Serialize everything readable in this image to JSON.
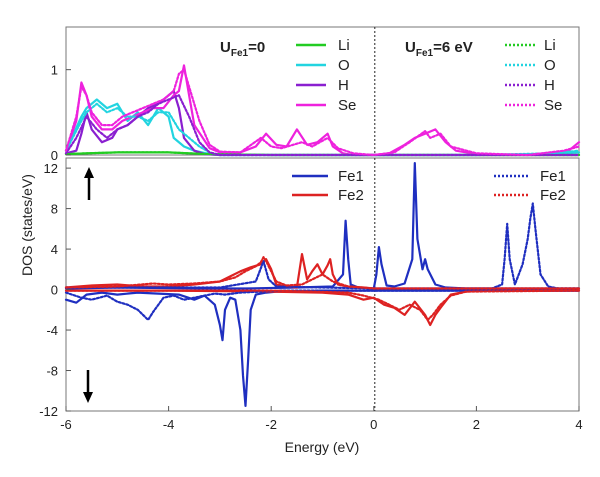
{
  "chart_data": [
    {
      "type": "line",
      "panel": "top",
      "xlim": [
        -6,
        4
      ],
      "ylim": [
        0,
        1.5
      ],
      "y_ticks": [
        "0",
        "1"
      ],
      "y_tick_values": [
        0,
        1
      ],
      "grid": false,
      "fermi_level_line": 0,
      "legend_left": {
        "title_main": "U",
        "title_sub": "Fe1",
        "title_value": "=0",
        "entries": [
          "Li",
          "O",
          "H",
          "Se"
        ],
        "style": "solid"
      },
      "legend_right": {
        "title_main": "U",
        "title_sub": "Fe1",
        "title_value": "=6 eV",
        "entries": [
          "Li",
          "O",
          "H",
          "Se"
        ],
        "style": "dotted"
      },
      "series": [
        {
          "name": "Li",
          "case": "U=0",
          "color": "#22cc22",
          "style": "solid",
          "x": [
            -6,
            -5.6,
            -5,
            -4.5,
            -4,
            -3.6,
            -3.2,
            -2,
            0,
            2,
            4
          ],
          "y": [
            0.01,
            0.02,
            0.03,
            0.03,
            0.03,
            0.02,
            0.01,
            0.0,
            0.0,
            0.0,
            0.0
          ]
        },
        {
          "name": "O",
          "case": "U=0",
          "color": "#22d4e0",
          "style": "solid",
          "x": [
            -6,
            -5.7,
            -5.6,
            -5.4,
            -5.2,
            -5,
            -4.8,
            -4.6,
            -4.4,
            -4.2,
            -4,
            -3.9,
            -3.7,
            -3.5,
            -3.2,
            -3,
            0,
            2,
            3.5,
            4
          ],
          "y": [
            0.05,
            0.45,
            0.55,
            0.65,
            0.55,
            0.6,
            0.4,
            0.5,
            0.35,
            0.55,
            0.45,
            0.2,
            0.1,
            0.05,
            0.01,
            0,
            0,
            0,
            0.01,
            0.03
          ]
        },
        {
          "name": "H",
          "case": "U=0",
          "color": "#8a1fd0",
          "style": "solid",
          "x": [
            -6,
            -5.8,
            -5.7,
            -5.6,
            -5.5,
            -5.3,
            -5.1,
            -5,
            -4.8,
            -4.6,
            -4.4,
            -4.2,
            -4,
            -3.9,
            -3.8,
            -3.7,
            -3.5,
            -3.3,
            -3,
            0,
            4
          ],
          "y": [
            0.02,
            0.05,
            0.25,
            0.5,
            0.3,
            0.15,
            0.2,
            0.3,
            0.35,
            0.45,
            0.55,
            0.6,
            0.7,
            0.75,
            0.55,
            0.2,
            0.05,
            0.01,
            0,
            0,
            0
          ]
        },
        {
          "name": "Se",
          "case": "U=0",
          "color": "#ee22dd",
          "style": "solid",
          "x": [
            -6,
            -5.8,
            -5.7,
            -5.6,
            -5.5,
            -5.3,
            -5.1,
            -4.9,
            -4.7,
            -4.5,
            -4.3,
            -4.1,
            -3.9,
            -3.8,
            -3.7,
            -3.6,
            -3.5,
            -3.2,
            -3,
            -2.6,
            -2.3,
            -2.1,
            -1.9,
            -1.7,
            -1.5,
            -1.3,
            -1.1,
            -0.9,
            -0.8,
            -0.6,
            -0.4,
            -0.2,
            0,
            0.3,
            0.6,
            0.8,
            1,
            1.2,
            1.4,
            1.6,
            2,
            3,
            3.8,
            4
          ],
          "y": [
            0.05,
            0.4,
            0.85,
            0.7,
            0.45,
            0.3,
            0.3,
            0.4,
            0.45,
            0.5,
            0.55,
            0.55,
            0.7,
            0.75,
            1.05,
            0.7,
            0.35,
            0.08,
            0.03,
            0.03,
            0.1,
            0.25,
            0.12,
            0.1,
            0.3,
            0.12,
            0.15,
            0.25,
            0.1,
            0.02,
            0.0,
            0.0,
            0.0,
            0.02,
            0.12,
            0.2,
            0.25,
            0.3,
            0.15,
            0.05,
            0.01,
            0.0,
            0.05,
            0.15
          ]
        },
        {
          "name": "Li",
          "case": "U=6 eV",
          "color": "#22cc22",
          "style": "dotted",
          "x": [
            -6,
            -5.6,
            -5,
            -4.5,
            -4,
            -3.6,
            -3.2,
            -2,
            0,
            2,
            4
          ],
          "y": [
            0.01,
            0.02,
            0.03,
            0.03,
            0.03,
            0.02,
            0.01,
            0.0,
            0.0,
            0.0,
            0.0
          ]
        },
        {
          "name": "O",
          "case": "U=6 eV",
          "color": "#22d4e0",
          "style": "dotted",
          "x": [
            -6,
            -5.7,
            -5.6,
            -5.4,
            -5.2,
            -5,
            -4.8,
            -4.6,
            -4.4,
            -4.2,
            -4,
            -3.8,
            -3.6,
            -3.4,
            -3.2,
            -3,
            0,
            2,
            3.5,
            4
          ],
          "y": [
            0.05,
            0.4,
            0.5,
            0.6,
            0.5,
            0.55,
            0.45,
            0.45,
            0.4,
            0.5,
            0.5,
            0.3,
            0.2,
            0.1,
            0.03,
            0,
            0,
            0,
            0.02,
            0.05
          ]
        },
        {
          "name": "H",
          "case": "U=6 eV",
          "color": "#8a1fd0",
          "style": "dotted",
          "x": [
            -6,
            -5.8,
            -5.6,
            -5.4,
            -5.2,
            -5,
            -4.8,
            -4.6,
            -4.4,
            -4.2,
            -4,
            -3.8,
            -3.6,
            -3.4,
            -3.2,
            -3,
            0,
            4
          ],
          "y": [
            0.02,
            0.2,
            0.45,
            0.3,
            0.2,
            0.3,
            0.35,
            0.45,
            0.5,
            0.6,
            0.65,
            0.7,
            0.45,
            0.15,
            0.03,
            0,
            0,
            0
          ]
        },
        {
          "name": "Se",
          "case": "U=6 eV",
          "color": "#ee22dd",
          "style": "dotted",
          "x": [
            -6,
            -5.8,
            -5.7,
            -5.6,
            -5.5,
            -5.3,
            -5.1,
            -4.9,
            -4.7,
            -4.5,
            -4.3,
            -4.1,
            -3.9,
            -3.8,
            -3.7,
            -3.6,
            -3.4,
            -3.2,
            -3,
            -2.6,
            -2.2,
            -2,
            -1.8,
            -1.4,
            -1.2,
            -0.9,
            -0.7,
            -0.4,
            0,
            0.4,
            0.7,
            1,
            1.1,
            1.3,
            1.5,
            2,
            3,
            3.7,
            4
          ],
          "y": [
            0.05,
            0.45,
            0.8,
            0.7,
            0.5,
            0.35,
            0.35,
            0.45,
            0.5,
            0.55,
            0.6,
            0.65,
            0.75,
            0.95,
            1.0,
            0.8,
            0.4,
            0.12,
            0.04,
            0.03,
            0.2,
            0.1,
            0.08,
            0.15,
            0.1,
            0.2,
            0.08,
            0.02,
            0,
            0.03,
            0.15,
            0.28,
            0.2,
            0.25,
            0.1,
            0.02,
            0,
            0.05,
            0.1
          ]
        }
      ]
    },
    {
      "type": "line",
      "panel": "bottom",
      "xlim": [
        -6,
        4
      ],
      "ylim": [
        -12,
        13
      ],
      "x_ticks": [
        "-6",
        "-4",
        "-2",
        "0",
        "2",
        "4"
      ],
      "x_tick_values": [
        -6,
        -4,
        -2,
        0,
        2,
        4
      ],
      "y_ticks": [
        "12",
        "8",
        "4",
        "0",
        "-4",
        "-8",
        "-12"
      ],
      "y_tick_values": [
        12,
        8,
        4,
        0,
        -4,
        -8,
        -12
      ],
      "xlabel": "Energy (eV)",
      "ylabel": "DOS (states/eV)",
      "grid": false,
      "fermi_level_line": 0,
      "arrows": [
        "spin-up",
        "spin-down"
      ],
      "legend_left": {
        "entries": [
          "Fe1",
          "Fe2"
        ],
        "style": "solid"
      },
      "legend_right": {
        "entries": [
          "Fe1",
          "Fe2"
        ],
        "style": "dotted"
      },
      "series": [
        {
          "name": "Fe1",
          "case": "U=0",
          "spin": "up",
          "color": "#1f2fc0",
          "style": "solid",
          "x": [
            -6,
            -5,
            -3.2,
            -2.5,
            -1.5,
            -0.8,
            -0.6,
            -0.55,
            -0.5,
            -0.45,
            -0.3,
            0,
            0.05,
            0.1,
            0.15,
            0.25,
            0.4,
            0.6,
            0.75,
            0.8,
            0.85,
            0.95,
            1.0,
            1.05,
            1.2,
            1.4,
            1.8,
            4
          ],
          "y": [
            0.1,
            0.2,
            0.1,
            0.1,
            0.2,
            0.3,
            1.5,
            6.8,
            3.0,
            0.5,
            0.2,
            0.1,
            1.5,
            4.2,
            2.5,
            0.4,
            0.3,
            0.6,
            3.0,
            12.5,
            5.0,
            2.0,
            3.0,
            2.0,
            0.5,
            0.2,
            0.1,
            0.1
          ]
        },
        {
          "name": "Fe1",
          "case": "U=0",
          "spin": "down",
          "color": "#1f2fc0",
          "style": "solid",
          "x": [
            -6,
            -5.8,
            -5.6,
            -5.3,
            -5,
            -4.6,
            -4.2,
            -3.8,
            -3.5,
            -3.3,
            -3.1,
            -3.0,
            -2.95,
            -2.9,
            -2.8,
            -2.7,
            -2.6,
            -2.55,
            -2.5,
            -2.45,
            -2.4,
            -2.3,
            -2.1,
            -1.9,
            -1.5,
            -1,
            0,
            4
          ],
          "y": [
            -1.0,
            -1.3,
            -0.5,
            -0.3,
            -0.5,
            -0.3,
            -0.4,
            -0.5,
            -1.0,
            -0.6,
            -1.5,
            -3.5,
            -5.0,
            -2.0,
            -0.8,
            -1.0,
            -4.0,
            -8.5,
            -11.5,
            -7.0,
            -2.0,
            -0.5,
            -0.3,
            -0.2,
            -0.2,
            -0.1,
            -0.1,
            -0.1
          ]
        },
        {
          "name": "Fe2",
          "case": "U=0",
          "spin": "up",
          "color": "#dd2222",
          "style": "solid",
          "x": [
            -6,
            -5.5,
            -5,
            -4.5,
            -4,
            -3.5,
            -3,
            -2.8,
            -2.6,
            -2.4,
            -2.2,
            -2.1,
            -2.0,
            -1.9,
            -1.7,
            -1.5,
            -1.4,
            -1.3,
            -1.2,
            -1.1,
            -1,
            -0.9,
            -0.85,
            -0.8,
            -0.7,
            -0.5,
            -0.2,
            0,
            0.3,
            0.8,
            1.5,
            2,
            4
          ],
          "y": [
            0.2,
            0.4,
            0.5,
            0.3,
            0.3,
            0.5,
            0.8,
            1.3,
            1.8,
            2.2,
            2.5,
            3.0,
            2.0,
            0.5,
            0.3,
            0.2,
            3.5,
            1.0,
            1.8,
            2.5,
            1.5,
            2.4,
            3.0,
            1.5,
            0.5,
            0.3,
            0.2,
            0.1,
            0.1,
            0.1,
            0.1,
            0.1,
            0.1
          ]
        },
        {
          "name": "Fe2",
          "case": "U=0",
          "spin": "down",
          "color": "#dd2222",
          "style": "solid",
          "x": [
            -6,
            -4,
            -2,
            -1,
            -0.5,
            -0.2,
            0,
            0.2,
            0.4,
            0.6,
            0.8,
            1.0,
            1.1,
            1.2,
            1.3,
            1.5,
            1.8,
            2.2,
            4
          ],
          "y": [
            -0.1,
            -0.1,
            -0.2,
            -0.3,
            -0.5,
            -1.0,
            -0.8,
            -1.5,
            -1.8,
            -2.5,
            -1.2,
            -2.5,
            -3.5,
            -2.5,
            -1.8,
            -0.5,
            -0.2,
            -0.1,
            -0.1
          ]
        },
        {
          "name": "Fe1",
          "case": "U=6 eV",
          "spin": "up",
          "color": "#1f2fc0",
          "style": "dotted",
          "x": [
            -6,
            -3,
            -2.3,
            -2.15,
            -2.05,
            -1.9,
            -1,
            0,
            2.3,
            2.5,
            2.55,
            2.6,
            2.65,
            2.75,
            2.9,
            3.0,
            3.05,
            3.1,
            3.15,
            3.25,
            3.4,
            3.6,
            4
          ],
          "y": [
            0.2,
            0.2,
            0.8,
            2.8,
            1.0,
            0.3,
            0.2,
            0.1,
            0.1,
            0.5,
            3.0,
            6.5,
            3.0,
            0.5,
            2.5,
            5.0,
            7.0,
            8.5,
            6.0,
            1.5,
            0.3,
            0.1,
            0.1
          ]
        },
        {
          "name": "Fe1",
          "case": "U=6 eV",
          "spin": "down",
          "color": "#1f2fc0",
          "style": "dotted",
          "x": [
            -6,
            -5.7,
            -5.5,
            -5.2,
            -5.0,
            -4.8,
            -4.6,
            -4.4,
            -4.3,
            -4.1,
            -3.9,
            -3.7,
            -3.5,
            -3.3,
            -3.1,
            -2.9,
            -2.6,
            -2.2,
            -1.8,
            0,
            4
          ],
          "y": [
            -0.3,
            -0.8,
            -1.0,
            -0.6,
            -1.2,
            -1.5,
            -2.0,
            -3.0,
            -2.2,
            -0.8,
            -0.6,
            -1.0,
            -0.8,
            -0.6,
            -0.4,
            -0.5,
            -0.3,
            -0.2,
            -0.1,
            -0.1,
            -0.1
          ]
        },
        {
          "name": "Fe2",
          "case": "U=6 eV",
          "spin": "up",
          "color": "#dd2222",
          "style": "dotted",
          "x": [
            -6,
            -5,
            -4.3,
            -4,
            -3.5,
            -3,
            -2.7,
            -2.5,
            -2.3,
            -2.2,
            -2.15,
            -2.1,
            -2.0,
            -1.9,
            -1.7,
            -1.4,
            -1.2,
            -1.0,
            -0.8,
            -0.5,
            0,
            4
          ],
          "y": [
            0.2,
            0.3,
            0.6,
            0.5,
            0.6,
            0.8,
            1.2,
            1.8,
            2.3,
            2.7,
            3.2,
            2.8,
            1.8,
            0.8,
            0.4,
            0.5,
            1.0,
            1.5,
            0.8,
            0.3,
            0.1,
            0.1
          ]
        },
        {
          "name": "Fe2",
          "case": "U=6 eV",
          "spin": "down",
          "color": "#dd2222",
          "style": "dotted",
          "x": [
            -6,
            -2,
            -0.5,
            -0.2,
            0.1,
            0.3,
            0.5,
            0.7,
            0.9,
            1.05,
            1.15,
            1.3,
            1.5,
            1.8,
            4
          ],
          "y": [
            -0.1,
            -0.1,
            -0.3,
            -0.6,
            -1.0,
            -1.5,
            -2.0,
            -1.5,
            -2.0,
            -3.0,
            -2.5,
            -1.5,
            -0.6,
            -0.2,
            -0.1
          ]
        }
      ]
    }
  ]
}
